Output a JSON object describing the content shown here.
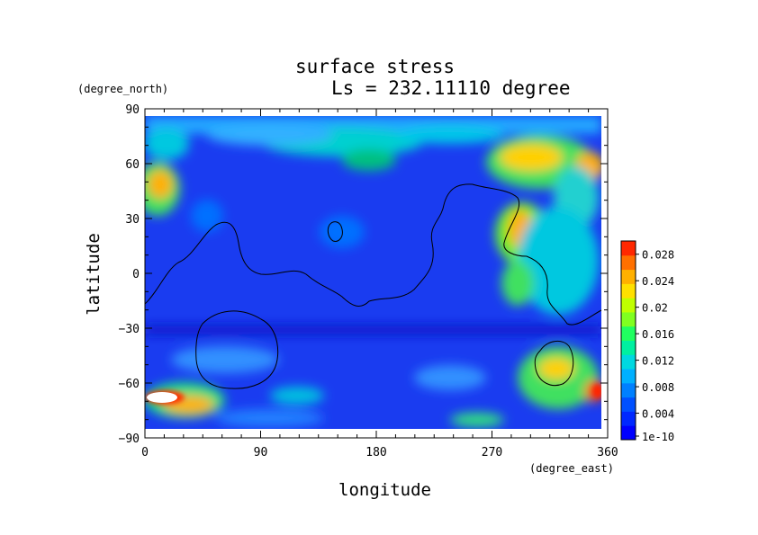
{
  "chart_data": {
    "type": "heatmap",
    "title": "surface stress",
    "subtitle": "Ls = 232.11110 degree",
    "xlabel": "longitude",
    "ylabel": "latitude",
    "xunits": "(degree_east)",
    "yunits": "(degree_north)",
    "xlim": [
      0,
      360
    ],
    "ylim": [
      -90,
      90
    ],
    "xticks": [
      0,
      90,
      180,
      270,
      360
    ],
    "yticks": [
      90,
      60,
      30,
      0,
      -30,
      -60,
      -90
    ],
    "xtick_labels": [
      "0",
      "90",
      "180",
      "270",
      "360"
    ],
    "ytick_labels": [
      "90",
      "60",
      "30",
      "0",
      "−30",
      "−60",
      "−90"
    ],
    "colorbar": {
      "min": 1e-10,
      "max": 0.03,
      "tick_labels": [
        "0.028",
        "0.024",
        "0.02",
        "0.016",
        "0.012",
        "0.008",
        "0.004",
        "1e-10"
      ],
      "tick_values": [
        0.028,
        0.024,
        0.02,
        0.016,
        0.012,
        0.008,
        0.004,
        0
      ],
      "colors": [
        "#0000ff",
        "#0028ff",
        "#0050ff",
        "#0080ff",
        "#00b0ff",
        "#00d8e0",
        "#00f0a0",
        "#20ff60",
        "#80ff20",
        "#c0ff00",
        "#ffe000",
        "#ffb000",
        "#ff7000",
        "#ff2800"
      ]
    },
    "features": [
      {
        "lon": 15,
        "lat": 52,
        "value": 0.021
      },
      {
        "lon": 320,
        "lat": 65,
        "value": 0.022
      },
      {
        "lon": 350,
        "lat": 58,
        "value": 0.02
      },
      {
        "lon": 295,
        "lat": 25,
        "value": 0.02
      },
      {
        "lon": 300,
        "lat": 0,
        "value": 0.014
      },
      {
        "lon": 320,
        "lat": -55,
        "value": 0.02
      },
      {
        "lon": 355,
        "lat": -65,
        "value": 0.03
      },
      {
        "lon": 20,
        "lat": -70,
        "value": 0.034
      },
      {
        "lon": 270,
        "lat": -80,
        "value": 0.012
      },
      {
        "lon": 175,
        "lat": 75,
        "value": 0.012
      },
      {
        "lon": 100,
        "lat": 75,
        "value": 0.009
      }
    ]
  }
}
